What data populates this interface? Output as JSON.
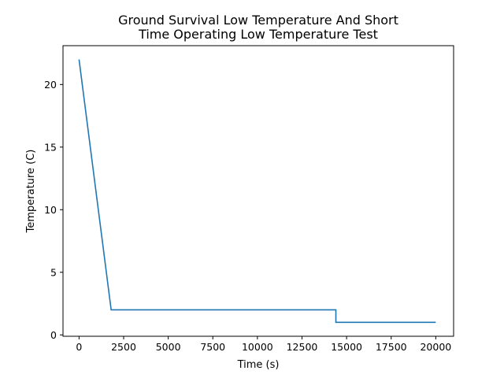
{
  "chart_data": {
    "type": "line",
    "title_lines": [
      "Ground Survival Low Temperature And Short",
      "Time Operating Low Temperature Test"
    ],
    "xlabel": "Time (s)",
    "ylabel": "Temperature (C)",
    "xlim": [
      -900,
      21000
    ],
    "ylim": [
      -0.11,
      23.1
    ],
    "x_ticks": [
      0,
      2500,
      5000,
      7500,
      10000,
      12500,
      15000,
      17500,
      20000
    ],
    "x_tick_labels": [
      "0",
      "2500",
      "5000",
      "7500",
      "10000",
      "12500",
      "15000",
      "17500",
      "20000"
    ],
    "y_ticks": [
      0,
      5,
      10,
      15,
      20
    ],
    "y_tick_labels": [
      "0",
      "5",
      "10",
      "15",
      "20"
    ],
    "grid": false,
    "series": [
      {
        "color": "#1f77b4",
        "points": [
          [
            0,
            22
          ],
          [
            1800,
            2
          ],
          [
            14400,
            2
          ],
          [
            14400,
            1
          ],
          [
            20000,
            1
          ]
        ]
      }
    ]
  }
}
